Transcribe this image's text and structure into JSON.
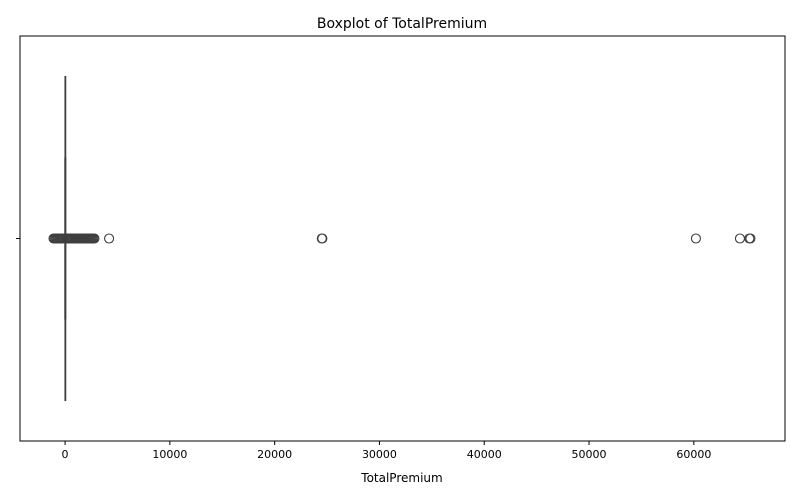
{
  "chart_data": {
    "type": "boxplot",
    "title": "Boxplot of TotalPremium",
    "xlabel": "TotalPremium",
    "ylabel": "",
    "xlim": [
      -4300,
      68700
    ],
    "xticks": [
      0,
      10000,
      20000,
      30000,
      40000,
      50000,
      60000
    ],
    "xtick_labels": [
      "0",
      "10000",
      "20000",
      "30000",
      "40000",
      "50000",
      "60000"
    ],
    "ytick_labels": [
      ""
    ],
    "grid": false,
    "box": {
      "whisker_low": -15,
      "q1": 0,
      "median": 2,
      "q3": 20,
      "whisker_high": 60
    },
    "outliers": [
      -1100,
      -1000,
      -900,
      -800,
      -700,
      -600,
      -500,
      -400,
      -300,
      -200,
      100,
      200,
      300,
      400,
      500,
      600,
      700,
      800,
      900,
      1000,
      1100,
      1200,
      1300,
      1400,
      1500,
      1600,
      1700,
      1800,
      1900,
      2000,
      2100,
      2200,
      2300,
      2400,
      2500,
      2600,
      2700,
      2800,
      4200,
      24500,
      24550,
      60200,
      64400,
      65300,
      65400
    ],
    "colors": {
      "box_edge": "#3f3f3f",
      "outlier_edge": "#3f3f3f",
      "axis": "#000000"
    }
  }
}
